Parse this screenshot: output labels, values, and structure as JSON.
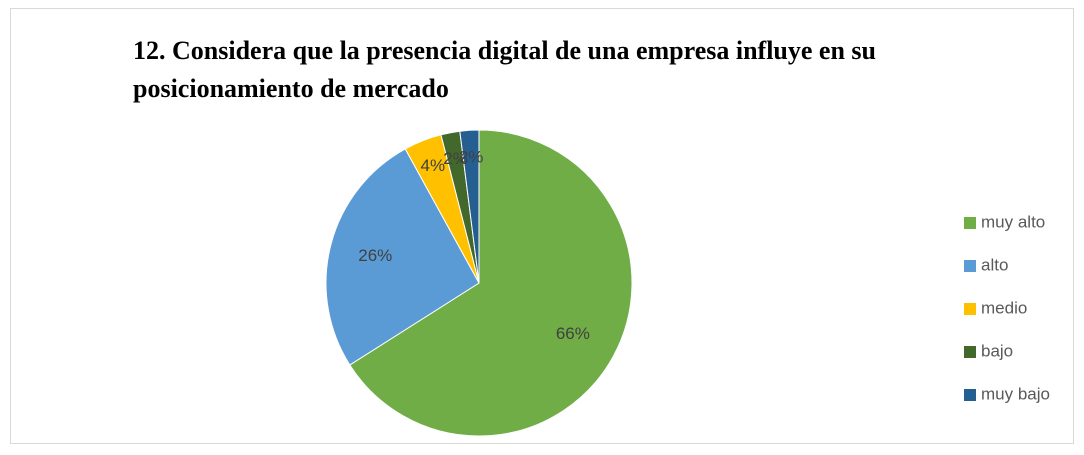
{
  "chart_data": {
    "type": "pie",
    "title": "12. Considera que la presencia digital de una empresa influye en su posicionamiento de mercado",
    "categories": [
      "muy alto",
      "alto",
      "medio",
      "bajo",
      "muy bajo"
    ],
    "values": [
      66,
      26,
      4,
      2,
      2
    ],
    "value_labels": [
      "66%",
      "26%",
      "4%",
      "2%",
      "2%"
    ],
    "colors": [
      "#70ad47",
      "#5b9bd5",
      "#ffc000",
      "#43682b",
      "#255e91"
    ],
    "legend": "right"
  }
}
